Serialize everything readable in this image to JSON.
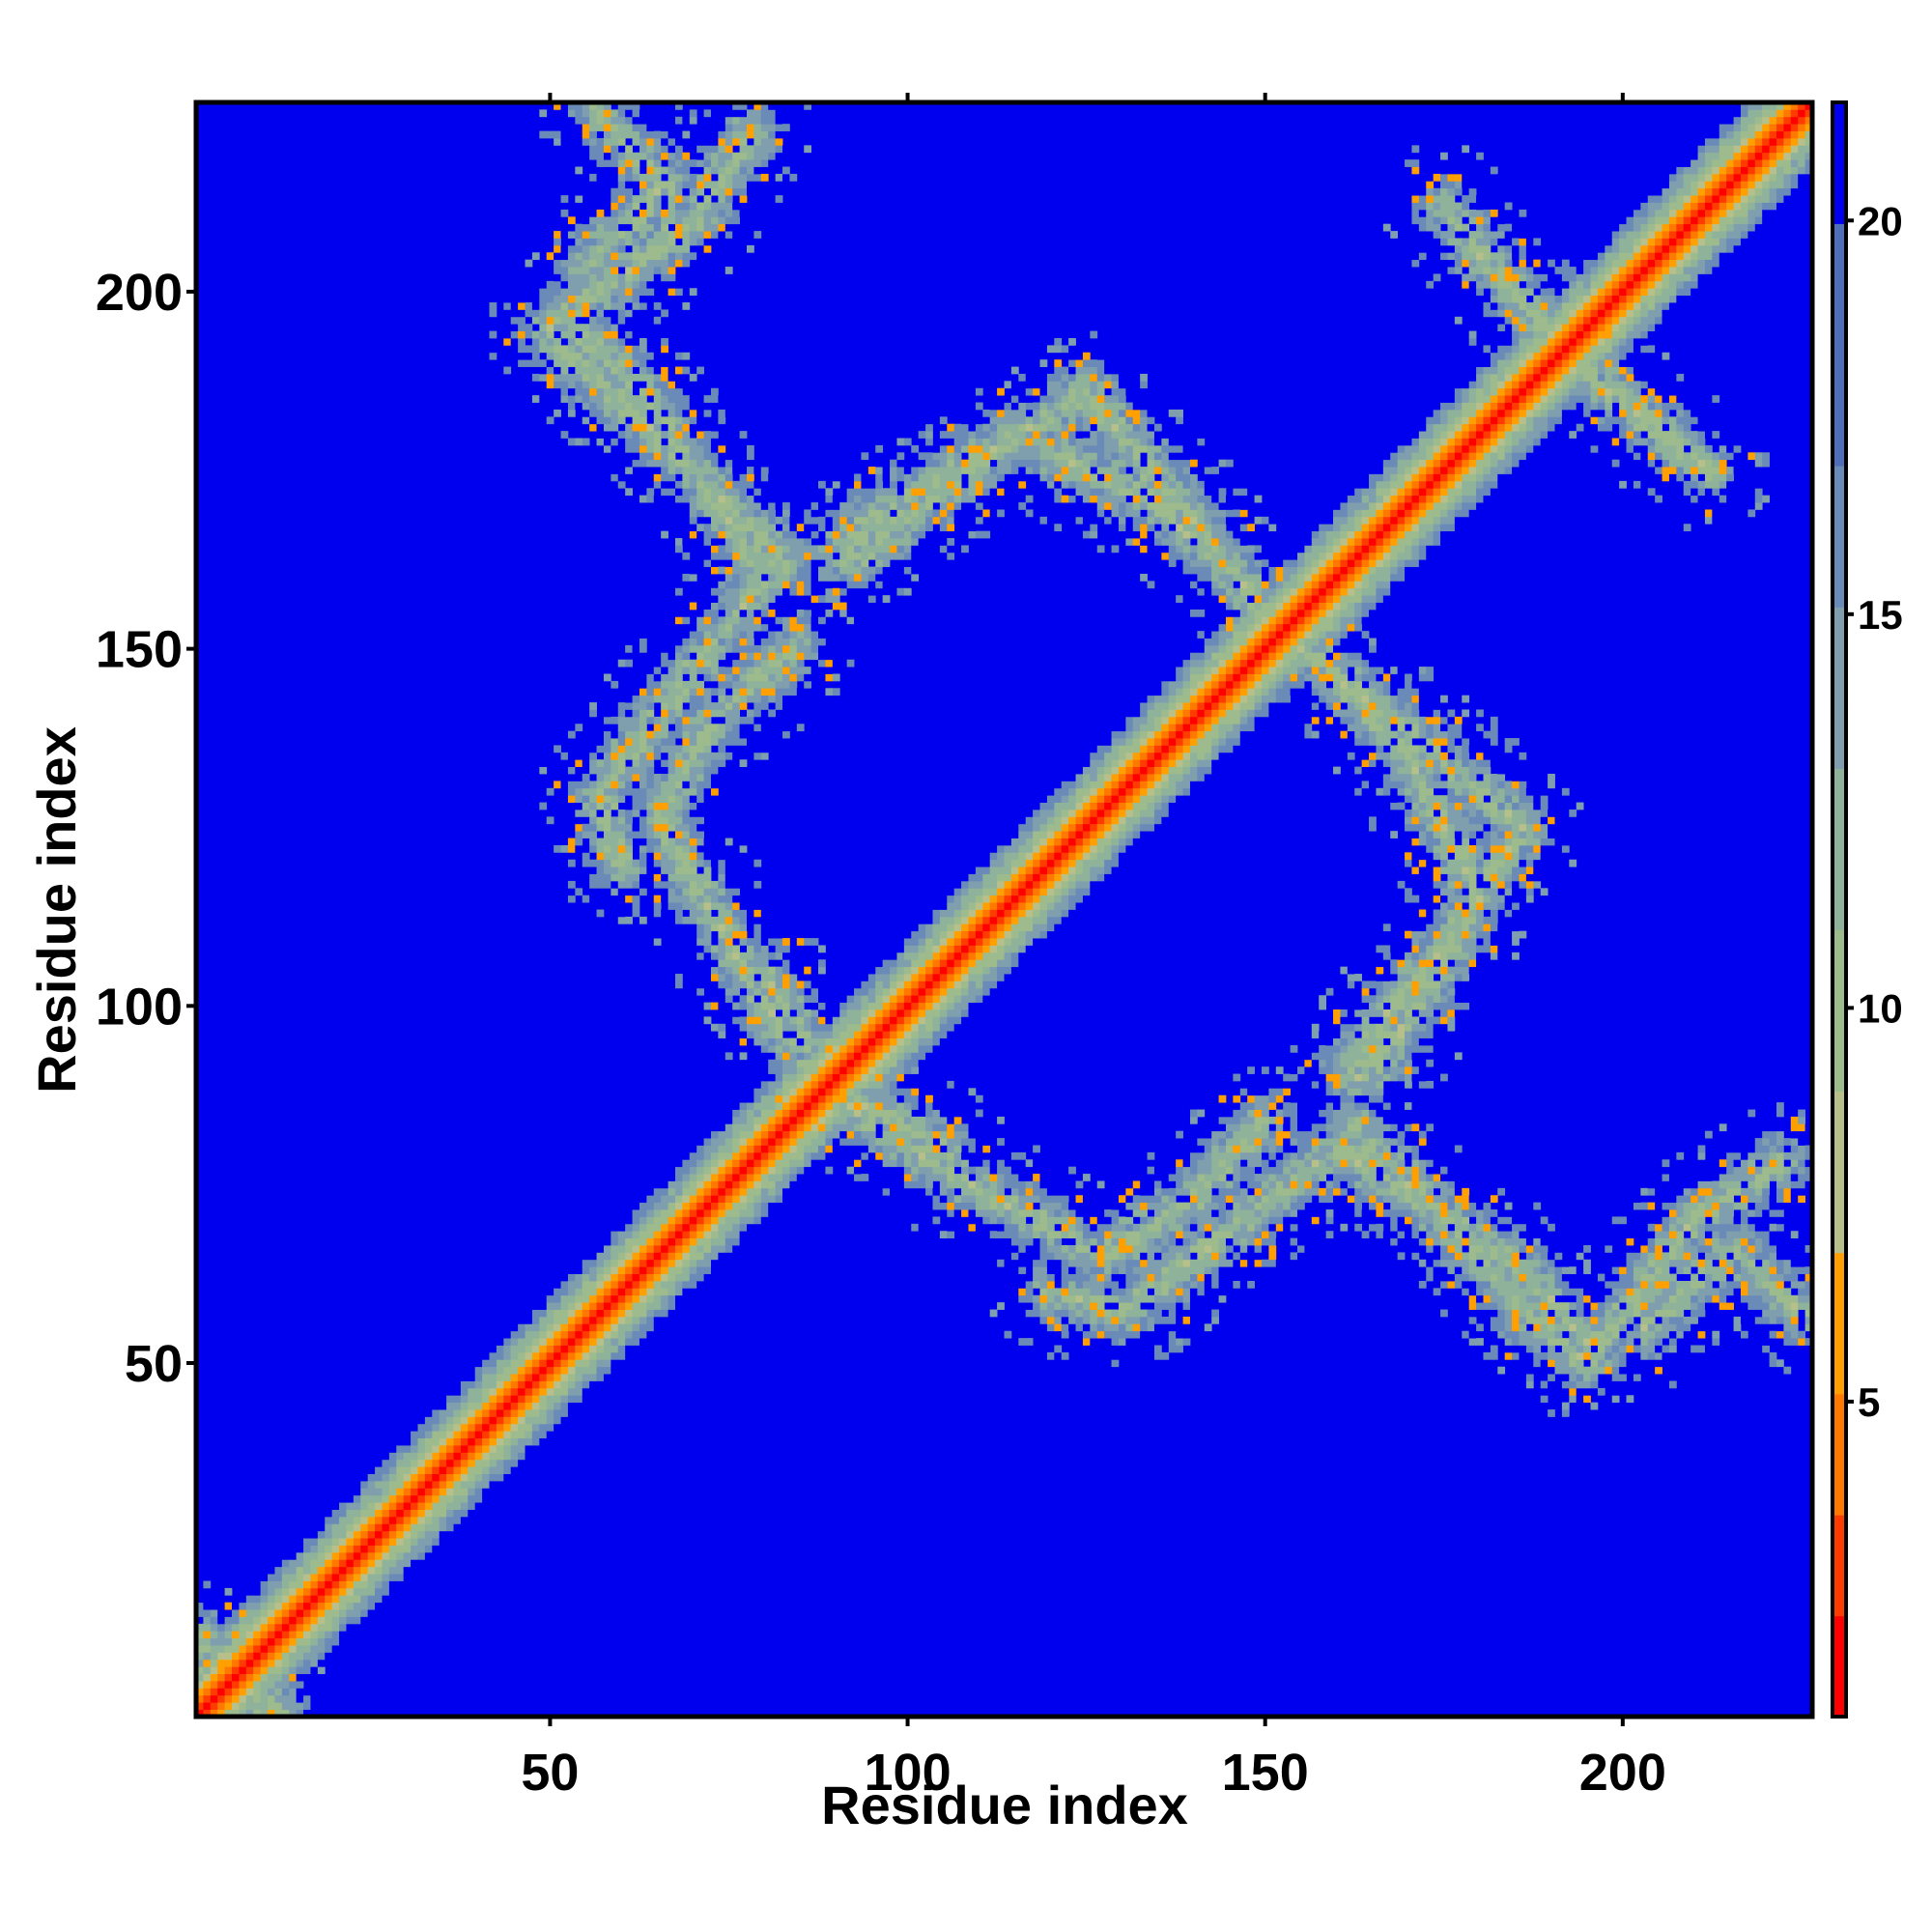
{
  "chart_data": {
    "type": "heatmap",
    "title": "",
    "xlabel": "Residue index",
    "ylabel": "Residue index",
    "xlim": [
      1,
      226
    ],
    "ylim": [
      1,
      226
    ],
    "n_residues": 226,
    "x_ticks": [
      50,
      100,
      150,
      200
    ],
    "y_ticks": [
      50,
      100,
      150,
      200
    ],
    "colorbar": {
      "range": [
        1,
        21.5
      ],
      "ticks": [
        5,
        10,
        15,
        20
      ],
      "colors": [
        "#ff0000",
        "#ff4500",
        "#ff8c00",
        "#ffa500",
        "#9dbb8c",
        "#8fa8a0",
        "#6f8cb0",
        "#4f6fb8",
        "#0000ee"
      ]
    },
    "background_value": 21.5,
    "matrix_description_bands": [
      {
        "name": "diagonal",
        "value_at_center": 1,
        "half_width": 10
      },
      {
        "name": "antidiagonal-A",
        "points": [
          [
            1,
            11
          ],
          [
            12,
            1
          ]
        ]
      },
      {
        "name": "contact-band-1",
        "points": [
          [
            52,
            196
          ],
          [
            63,
            186
          ],
          [
            80,
            160
          ],
          [
            57,
            130
          ],
          [
            60,
            120
          ]
        ]
      },
      {
        "name": "contact-band-2",
        "points": [
          [
            57,
            225
          ],
          [
            66,
            215
          ],
          [
            55,
            203
          ]
        ]
      },
      {
        "name": "contact-band-3",
        "points": [
          [
            92,
            162
          ],
          [
            110,
            176
          ],
          [
            125,
            186
          ],
          [
            140,
            168
          ],
          [
            150,
            155
          ]
        ]
      },
      {
        "name": "contact-band-4",
        "points": [
          [
            80,
            105
          ],
          [
            90,
            87
          ],
          [
            105,
            77
          ],
          [
            127,
            65
          ],
          [
            140,
            73
          ],
          [
            150,
            84
          ]
        ]
      },
      {
        "name": "contact-band-5",
        "points": [
          [
            162,
            83
          ],
          [
            175,
            70
          ],
          [
            188,
            56
          ],
          [
            195,
            50
          ],
          [
            210,
            70
          ],
          [
            222,
            78
          ]
        ]
      },
      {
        "name": "contact-band-6",
        "points": [
          [
            158,
            148
          ],
          [
            170,
            135
          ],
          [
            180,
            115
          ],
          [
            168,
            95
          ],
          [
            163,
            90
          ]
        ]
      },
      {
        "name": "contact-band-7",
        "points": [
          [
            178,
            208
          ],
          [
            187,
            197
          ],
          [
            197,
            187
          ],
          [
            212,
            175
          ]
        ]
      }
    ]
  }
}
